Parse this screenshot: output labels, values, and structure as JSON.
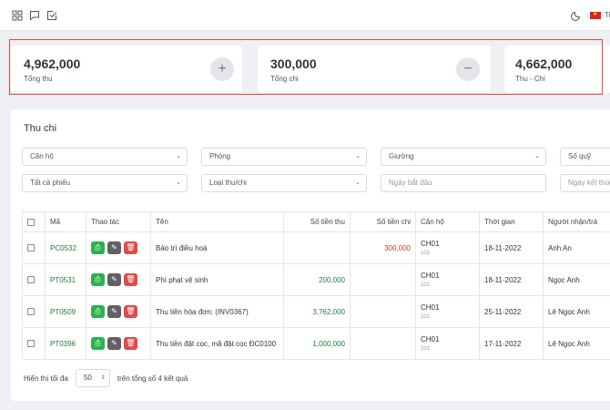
{
  "language": {
    "flag": "flag-vn-icon",
    "label": "Ti"
  },
  "stats": [
    {
      "value": "4,962,000",
      "label": "Tổng thu",
      "icon": "+"
    },
    {
      "value": "300,000",
      "label": "Tổng chi",
      "icon": "−"
    },
    {
      "value": "4,662,000",
      "label": "Thu - Chi"
    }
  ],
  "panel": {
    "title": "Thu chi",
    "filters": {
      "apartment": "Căn hộ",
      "room": "Phòng",
      "bed": "Giường",
      "fund": "Số quỹ",
      "vouchers": "Tất cả phiếu",
      "type": "Loại thu/chi",
      "start_date_placeholder": "Ngày bắt đầu",
      "end_date_placeholder": "Ngày kết thúc"
    }
  },
  "table": {
    "headers": {
      "code": "Mã",
      "actions": "Thao tác",
      "name": "Tên",
      "income": "Số tiền thu",
      "expense": "Số tiền chi",
      "apartment": "Căn hộ",
      "time": "Thời gian",
      "person": "Người nhận/trả"
    },
    "rows": [
      {
        "code": "PC0532",
        "name": "Bảo trì điều hoà",
        "income": "",
        "expense": "300,000",
        "apartment": "CH01",
        "room": "101",
        "time": "18-11-2022",
        "person": "Anh An"
      },
      {
        "code": "PT0531",
        "name": "Phí phạt vệ sinh",
        "income": "200,000",
        "expense": "",
        "apartment": "CH01",
        "room": "101",
        "time": "18-11-2022",
        "person": "Ngọc Anh"
      },
      {
        "code": "PT0509",
        "name": "Thu tiền hóa đơn: (INV0367)",
        "income": "3,762,000",
        "expense": "",
        "apartment": "CH01",
        "room": "101",
        "time": "25-11-2022",
        "person": "Lê Ngọc Anh"
      },
      {
        "code": "PT0396",
        "name": "Thu tiền đặt cọc, mã đặt cọc ĐC0100",
        "income": "1,000,000",
        "expense": "",
        "apartment": "CH01",
        "room": "101",
        "time": "17-11-2022",
        "person": "Lê Ngọc Anh"
      }
    ]
  },
  "footer": {
    "show_label": "Hiển thị tối đa",
    "page_size": "50",
    "total_text": "trên tổng số 4 kết quả"
  }
}
